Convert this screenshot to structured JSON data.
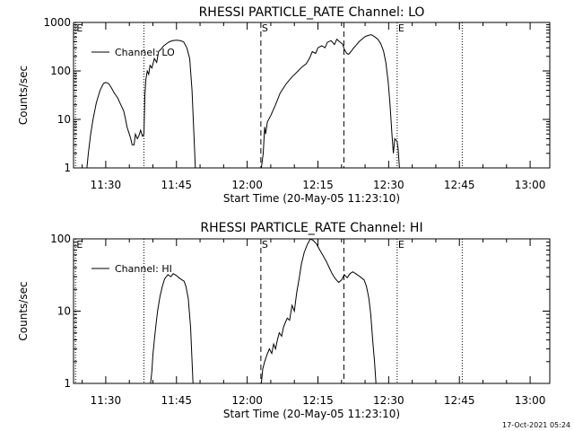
{
  "chart_data": [
    {
      "type": "line",
      "title": "RHESSI PARTICLE_RATE Channel: LO",
      "xlabel": "Start Time (20-May-05 11:23:10)",
      "ylabel": "Counts/sec",
      "y_scale": "log",
      "ylim": [
        1,
        1000
      ],
      "y_ticks": [
        {
          "v": 1,
          "label": "1"
        },
        {
          "v": 10,
          "label": "10"
        },
        {
          "v": 100,
          "label": "100"
        },
        {
          "v": 1000,
          "label": "1000"
        }
      ],
      "x_ticks": [
        {
          "v": 690,
          "label": "11:30"
        },
        {
          "v": 705,
          "label": "11:45"
        },
        {
          "v": 720,
          "label": "12:00"
        },
        {
          "v": 735,
          "label": "12:15"
        },
        {
          "v": 750,
          "label": "12:30"
        },
        {
          "v": 765,
          "label": "12:45"
        },
        {
          "v": 780,
          "label": "13:00"
        }
      ],
      "xlim": [
        683.17,
        784.17
      ],
      "legend": {
        "label": "Channel: LO",
        "position": "top-left"
      },
      "markers": [
        {
          "x": 683.6,
          "style": "dotted",
          "label": "E"
        },
        {
          "x": 698.1,
          "style": "dotted",
          "label": ""
        },
        {
          "x": 722.9,
          "style": "dashed",
          "label": "S"
        },
        {
          "x": 740.5,
          "style": "dashed",
          "label": ""
        },
        {
          "x": 751.8,
          "style": "dotted",
          "label": "E"
        },
        {
          "x": 765.6,
          "style": "dotted",
          "label": ""
        }
      ],
      "series": [
        {
          "segments": [
            [
              [
                686.0,
                1
              ],
              [
                686.3,
                2
              ],
              [
                686.8,
                5
              ],
              [
                687.3,
                10
              ],
              [
                688.0,
                22
              ],
              [
                688.8,
                40
              ],
              [
                689.5,
                55
              ],
              [
                690.0,
                58
              ],
              [
                690.6,
                55
              ],
              [
                691.2,
                45
              ],
              [
                691.8,
                35
              ],
              [
                692.5,
                28
              ],
              [
                693.2,
                20
              ],
              [
                693.8,
                15
              ],
              [
                694.2,
                10
              ],
              [
                694.5,
                7
              ],
              [
                695.0,
                5
              ],
              [
                695.3,
                4
              ],
              [
                695.6,
                3
              ],
              [
                696.0,
                3
              ],
              [
                696.3,
                5
              ],
              [
                696.7,
                4
              ],
              [
                697.0,
                4.5
              ],
              [
                697.4,
                6
              ],
              [
                697.8,
                4.5
              ],
              [
                698.1,
                5
              ],
              [
                698.3,
                30
              ],
              [
                698.5,
                65
              ],
              [
                698.8,
                100
              ],
              [
                699.1,
                85
              ],
              [
                699.4,
                130
              ],
              [
                699.8,
                115
              ],
              [
                700.3,
                180
              ],
              [
                700.8,
                150
              ],
              [
                701.2,
                250
              ],
              [
                701.7,
                280
              ],
              [
                702.3,
                330
              ],
              [
                702.8,
                360
              ],
              [
                703.5,
                400
              ],
              [
                704.2,
                420
              ],
              [
                705.0,
                430
              ],
              [
                705.8,
                420
              ],
              [
                706.5,
                400
              ],
              [
                707.2,
                300
              ],
              [
                707.8,
                180
              ],
              [
                708.3,
                40
              ],
              [
                708.7,
                5
              ],
              [
                709.0,
                1
              ]
            ],
            [
              [
                723.0,
                1
              ],
              [
                723.4,
                2
              ],
              [
                723.7,
                7
              ],
              [
                723.9,
                5
              ],
              [
                724.3,
                9
              ],
              [
                725.0,
                12
              ],
              [
                726.0,
                20
              ],
              [
                727.0,
                35
              ],
              [
                728.3,
                55
              ],
              [
                729.5,
                75
              ],
              [
                730.8,
                100
              ],
              [
                731.6,
                120
              ],
              [
                732.5,
                140
              ],
              [
                733.2,
                180
              ],
              [
                733.8,
                250
              ],
              [
                734.5,
                230
              ],
              [
                735.0,
                300
              ],
              [
                735.8,
                330
              ],
              [
                736.5,
                300
              ],
              [
                737.0,
                390
              ],
              [
                737.8,
                420
              ],
              [
                738.5,
                350
              ],
              [
                739.0,
                450
              ],
              [
                739.6,
                400
              ],
              [
                740.2,
                360
              ],
              [
                740.6,
                280
              ],
              [
                741.1,
                230
              ],
              [
                741.5,
                220
              ],
              [
                742.0,
                250
              ],
              [
                742.5,
                290
              ],
              [
                743.1,
                340
              ],
              [
                743.7,
                400
              ],
              [
                744.3,
                450
              ],
              [
                745.0,
                510
              ],
              [
                745.6,
                540
              ],
              [
                746.3,
                560
              ],
              [
                747.0,
                510
              ],
              [
                747.7,
                450
              ],
              [
                748.3,
                370
              ],
              [
                748.9,
                260
              ],
              [
                749.4,
                150
              ],
              [
                749.9,
                60
              ],
              [
                750.3,
                20
              ],
              [
                750.7,
                5
              ],
              [
                751.0,
                2
              ],
              [
                751.3,
                4
              ],
              [
                751.8,
                3.5
              ],
              [
                752.0,
                2.5
              ],
              [
                752.3,
                1
              ]
            ]
          ]
        }
      ]
    },
    {
      "type": "line",
      "title": "RHESSI PARTICLE_RATE Channel: HI",
      "xlabel": "Start Time (20-May-05 11:23:10)",
      "ylabel": "Counts/sec",
      "y_scale": "log",
      "ylim": [
        1,
        100
      ],
      "y_ticks": [
        {
          "v": 1,
          "label": "1"
        },
        {
          "v": 10,
          "label": "10"
        },
        {
          "v": 100,
          "label": "100"
        }
      ],
      "x_ticks": [
        {
          "v": 690,
          "label": "11:30"
        },
        {
          "v": 705,
          "label": "11:45"
        },
        {
          "v": 720,
          "label": "12:00"
        },
        {
          "v": 735,
          "label": "12:15"
        },
        {
          "v": 750,
          "label": "12:30"
        },
        {
          "v": 765,
          "label": "12:45"
        },
        {
          "v": 780,
          "label": "13:00"
        }
      ],
      "xlim": [
        683.17,
        784.17
      ],
      "legend": {
        "label": "Channel: HI",
        "position": "top-left"
      },
      "markers": [
        {
          "x": 683.6,
          "style": "dotted",
          "label": "E"
        },
        {
          "x": 698.1,
          "style": "dotted",
          "label": ""
        },
        {
          "x": 722.9,
          "style": "dashed",
          "label": "S"
        },
        {
          "x": 740.5,
          "style": "dashed",
          "label": ""
        },
        {
          "x": 751.8,
          "style": "dotted",
          "label": "E"
        },
        {
          "x": 765.6,
          "style": "dotted",
          "label": ""
        }
      ],
      "series": [
        {
          "segments": [
            [
              [
                699.5,
                1
              ],
              [
                699.8,
                1.5
              ],
              [
                700.0,
                2.5
              ],
              [
                700.3,
                4
              ],
              [
                700.6,
                6
              ],
              [
                701.0,
                10
              ],
              [
                701.5,
                16
              ],
              [
                702.0,
                22
              ],
              [
                702.5,
                28
              ],
              [
                703.2,
                32
              ],
              [
                703.8,
                30
              ],
              [
                704.3,
                33
              ],
              [
                705.0,
                31
              ],
              [
                705.5,
                29
              ],
              [
                706.2,
                27
              ],
              [
                706.6,
                26
              ],
              [
                707.0,
                22
              ],
              [
                707.5,
                15
              ],
              [
                708.0,
                6
              ],
              [
                708.5,
                1
              ]
            ],
            [
              [
                723.0,
                1
              ],
              [
                723.3,
                1.6
              ],
              [
                723.7,
                2
              ],
              [
                724.2,
                2.5
              ],
              [
                724.7,
                3
              ],
              [
                725.2,
                2.6
              ],
              [
                725.6,
                3.5
              ],
              [
                726.0,
                3
              ],
              [
                726.4,
                4
              ],
              [
                726.8,
                5
              ],
              [
                727.3,
                4.5
              ],
              [
                727.7,
                6
              ],
              [
                728.1,
                7
              ],
              [
                728.5,
                8
              ],
              [
                729.0,
                7.5
              ],
              [
                729.5,
                12
              ],
              [
                730.0,
                10
              ],
              [
                730.5,
                18
              ],
              [
                731.0,
                28
              ],
              [
                731.5,
                45
              ],
              [
                732.1,
                65
              ],
              [
                732.8,
                85
              ],
              [
                733.4,
                100
              ],
              [
                734.0,
                95
              ],
              [
                734.7,
                85
              ],
              [
                735.4,
                70
              ],
              [
                736.0,
                60
              ],
              [
                736.7,
                50
              ],
              [
                737.4,
                40
              ],
              [
                738.0,
                33
              ],
              [
                738.7,
                28
              ],
              [
                739.4,
                25
              ],
              [
                740.0,
                27
              ],
              [
                740.6,
                32
              ],
              [
                741.2,
                29
              ],
              [
                741.8,
                33
              ],
              [
                742.4,
                35
              ],
              [
                743.0,
                33
              ],
              [
                743.6,
                31
              ],
              [
                744.2,
                29
              ],
              [
                744.8,
                27
              ],
              [
                745.3,
                22
              ],
              [
                745.8,
                15
              ],
              [
                746.2,
                9
              ],
              [
                746.6,
                4
              ],
              [
                747.0,
                2
              ],
              [
                747.3,
                1
              ]
            ]
          ]
        }
      ]
    }
  ],
  "footer": {
    "date_stamp": "17-Oct-2021 05:24"
  }
}
